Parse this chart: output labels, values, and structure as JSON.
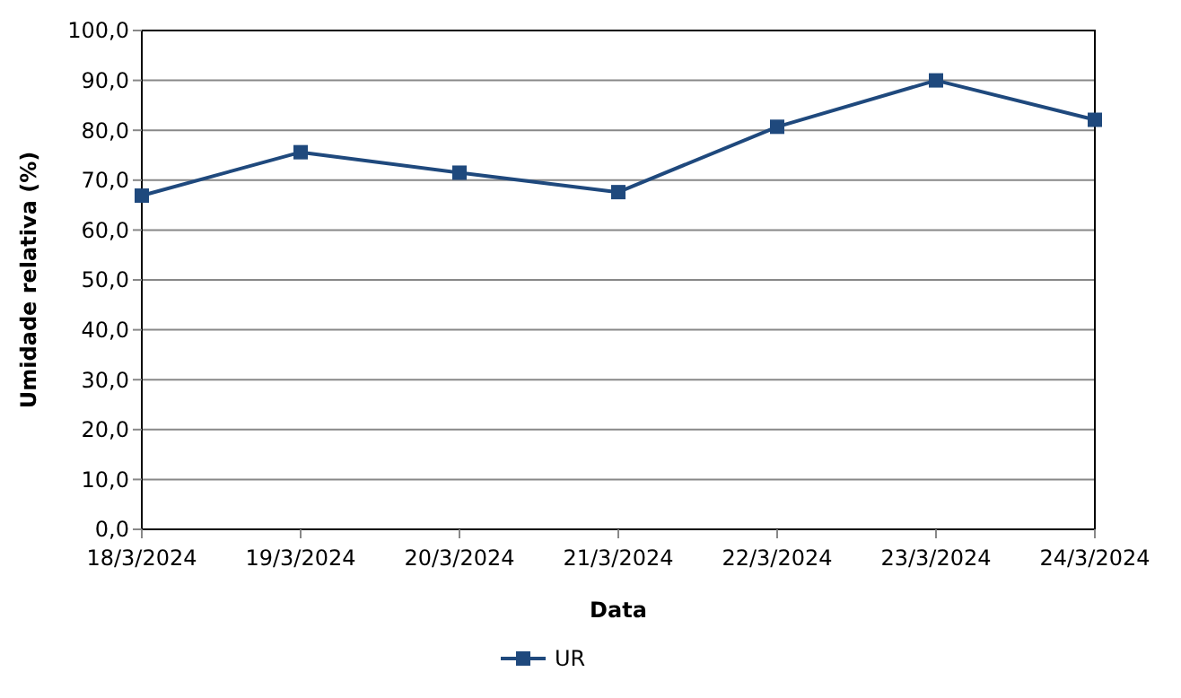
{
  "chart_data": {
    "type": "line",
    "xlabel": "Data",
    "ylabel": "Umidade relativa (%)",
    "categories": [
      "18/3/2024",
      "19/3/2024",
      "20/3/2024",
      "21/3/2024",
      "22/3/2024",
      "23/3/2024",
      "24/3/2024"
    ],
    "series": [
      {
        "name": "UR",
        "color": "#1f497d",
        "values": [
          66.9,
          75.6,
          71.5,
          67.6,
          80.7,
          90.0,
          82.1
        ]
      }
    ],
    "ylim": [
      0,
      100
    ],
    "yticks": [
      {
        "value": 0,
        "label": "0,0"
      },
      {
        "value": 10,
        "label": "10,0"
      },
      {
        "value": 20,
        "label": "20,0"
      },
      {
        "value": 30,
        "label": "30,0"
      },
      {
        "value": 40,
        "label": "40,0"
      },
      {
        "value": 50,
        "label": "50,0"
      },
      {
        "value": 60,
        "label": "60,0"
      },
      {
        "value": 70,
        "label": "70,0"
      },
      {
        "value": 80,
        "label": "80,0"
      },
      {
        "value": 90,
        "label": "90,0"
      },
      {
        "value": 100,
        "label": "100,0"
      }
    ],
    "grid": "y",
    "legend": "bottom",
    "marker": "square",
    "line_style": "solid"
  }
}
